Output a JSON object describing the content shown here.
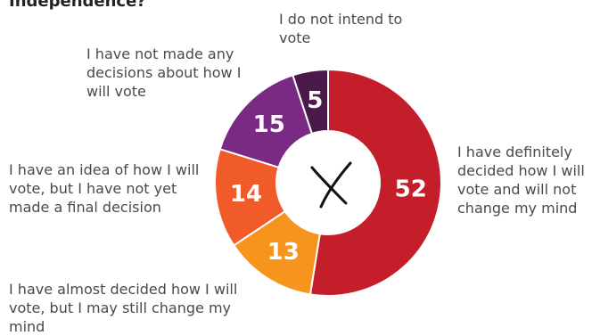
{
  "chart_data": {
    "type": "donut",
    "title": "Independence?",
    "categories": [
      "I have definitely decided how I will vote and will not change my mind",
      "I have almost decided how I will vote, but I may still change my mind",
      "I have an idea of how I will vote, but I have not yet made a final decision",
      "I have not made any decisions about how I will vote",
      "I do not intend to vote"
    ],
    "values": [
      52,
      13,
      14,
      15,
      5
    ],
    "colors": [
      "#c41e2a",
      "#f7941d",
      "#f15a29",
      "#7b2a84",
      "#4b1a4b"
    ]
  }
}
